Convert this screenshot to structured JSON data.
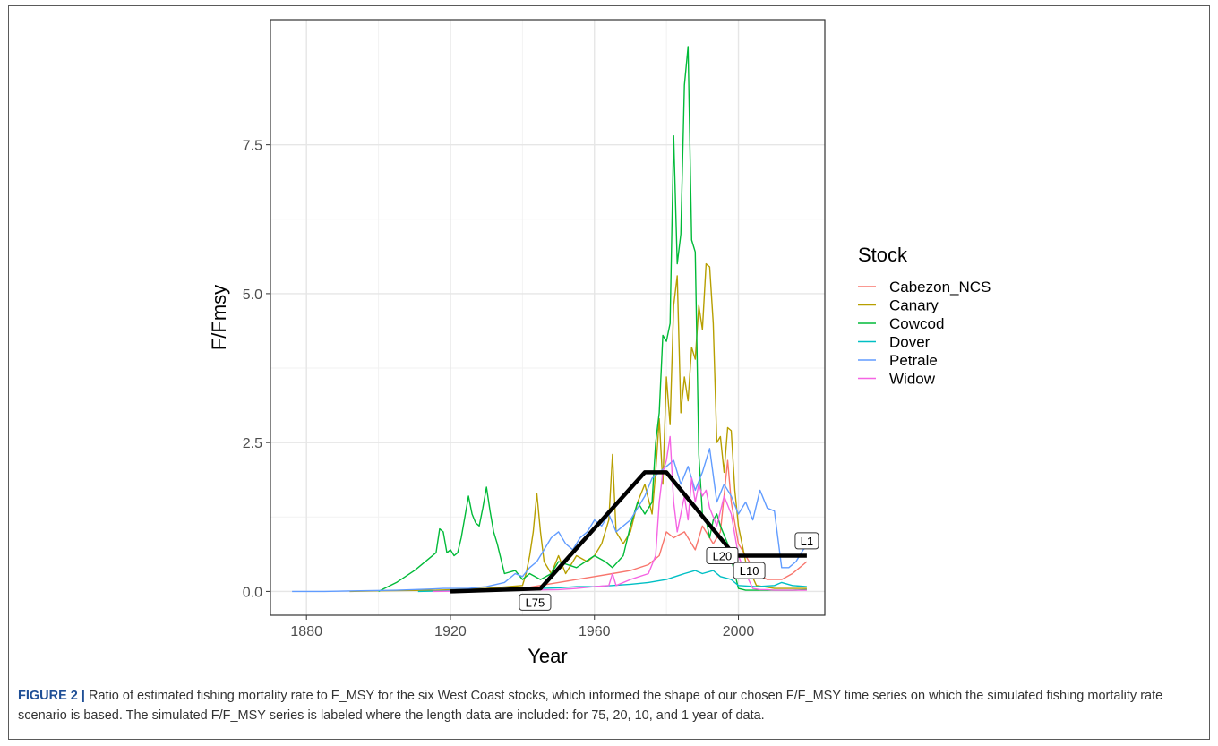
{
  "chart_data": {
    "type": "line",
    "title": "",
    "xlabel": "Year",
    "ylabel": "F/Fmsy",
    "xlim": [
      1870,
      2024
    ],
    "ylim": [
      -0.4,
      9.6
    ],
    "x_ticks": [
      1880,
      1920,
      1960,
      2000
    ],
    "x_tick_labels": [
      "1880",
      "1920",
      "1960",
      "2000"
    ],
    "y_ticks": [
      0,
      2.5,
      5,
      7.5
    ],
    "y_tick_labels": [
      "0.0",
      "2.5",
      "5.0",
      "7.5"
    ],
    "grid": true,
    "legend": {
      "title": "Stock",
      "position": "right"
    },
    "series": [
      {
        "name": "Cabezon_NCS",
        "color": "#F8766D",
        "x": [
          1916,
          1930,
          1940,
          1950,
          1955,
          1960,
          1965,
          1970,
          1975,
          1978,
          1980,
          1982,
          1985,
          1988,
          1990,
          1993,
          1995,
          1997,
          1998,
          2000,
          2002,
          2005,
          2008,
          2010,
          2012,
          2015,
          2018,
          2019
        ],
        "y": [
          0.01,
          0.02,
          0.05,
          0.15,
          0.2,
          0.25,
          0.3,
          0.35,
          0.45,
          0.6,
          1.0,
          0.9,
          1.0,
          0.7,
          1.1,
          0.8,
          1.0,
          2.2,
          1.5,
          0.8,
          0.6,
          0.3,
          0.2,
          0.2,
          0.2,
          0.3,
          0.45,
          0.5
        ]
      },
      {
        "name": "Canary",
        "color": "#B79F00",
        "x": [
          1892,
          1900,
          1916,
          1930,
          1940,
          1941,
          1942,
          1943,
          1944,
          1945,
          1946,
          1948,
          1950,
          1952,
          1955,
          1958,
          1960,
          1962,
          1964,
          1965,
          1966,
          1968,
          1970,
          1972,
          1974,
          1976,
          1977,
          1978,
          1979,
          1980,
          1981,
          1982,
          1983,
          1984,
          1985,
          1986,
          1987,
          1988,
          1989,
          1990,
          1991,
          1992,
          1993,
          1994,
          1995,
          1996,
          1997,
          1998,
          1999,
          2000,
          2002,
          2005,
          2010,
          2015,
          2019
        ],
        "y": [
          0.0,
          0.01,
          0.02,
          0.05,
          0.1,
          0.3,
          0.6,
          1.0,
          1.65,
          1.0,
          0.5,
          0.3,
          0.6,
          0.3,
          0.6,
          0.5,
          0.6,
          0.8,
          1.2,
          2.3,
          1.0,
          0.8,
          1.0,
          1.5,
          1.8,
          1.3,
          2.0,
          2.9,
          1.8,
          3.6,
          2.8,
          4.8,
          5.3,
          3.0,
          3.6,
          3.2,
          4.1,
          3.9,
          4.8,
          4.4,
          5.5,
          5.45,
          4.5,
          2.5,
          2.6,
          2.0,
          2.75,
          2.7,
          1.7,
          1.1,
          0.5,
          0.1,
          0.05,
          0.05,
          0.05
        ]
      },
      {
        "name": "Cowcod",
        "color": "#00BA38",
        "x": [
          1900,
          1905,
          1910,
          1916,
          1917,
          1918,
          1919,
          1920,
          1921,
          1922,
          1923,
          1925,
          1926,
          1927,
          1928,
          1929,
          1930,
          1931,
          1932,
          1933,
          1935,
          1938,
          1940,
          1942,
          1945,
          1948,
          1950,
          1955,
          1960,
          1963,
          1965,
          1968,
          1970,
          1972,
          1974,
          1976,
          1977,
          1978,
          1979,
          1980,
          1981,
          1982,
          1983,
          1984,
          1985,
          1986,
          1987,
          1988,
          1989,
          1990,
          1991,
          1992,
          1993,
          1994,
          1995,
          1997,
          2000,
          2002,
          2005,
          2010,
          2015,
          2019
        ],
        "y": [
          0.0,
          0.15,
          0.35,
          0.65,
          1.05,
          1.0,
          0.65,
          0.7,
          0.6,
          0.65,
          0.9,
          1.6,
          1.3,
          1.15,
          1.1,
          1.4,
          1.75,
          1.35,
          1.0,
          0.8,
          0.3,
          0.35,
          0.2,
          0.3,
          0.2,
          0.3,
          0.5,
          0.4,
          0.6,
          0.5,
          0.4,
          0.6,
          1.1,
          1.5,
          1.3,
          1.5,
          2.5,
          3.0,
          4.3,
          4.2,
          4.5,
          7.65,
          5.5,
          6.0,
          8.5,
          9.15,
          5.9,
          5.7,
          2.3,
          1.3,
          1.2,
          0.9,
          1.2,
          1.3,
          1.1,
          0.8,
          0.05,
          0.02,
          0.02,
          0.02,
          0.02,
          0.03
        ]
      },
      {
        "name": "Dover",
        "color": "#00BFC4",
        "x": [
          1911,
          1920,
          1930,
          1940,
          1950,
          1955,
          1960,
          1965,
          1970,
          1975,
          1980,
          1985,
          1988,
          1990,
          1993,
          1995,
          1998,
          2000,
          2005,
          2010,
          2012,
          2015,
          2019
        ],
        "y": [
          0.0,
          0.01,
          0.02,
          0.04,
          0.06,
          0.08,
          0.08,
          0.1,
          0.12,
          0.15,
          0.2,
          0.3,
          0.35,
          0.3,
          0.35,
          0.25,
          0.2,
          0.1,
          0.08,
          0.1,
          0.15,
          0.1,
          0.08
        ]
      },
      {
        "name": "Petrale",
        "color": "#619CFF",
        "x": [
          1876,
          1885,
          1895,
          1905,
          1915,
          1918,
          1925,
          1930,
          1935,
          1938,
          1940,
          1942,
          1944,
          1946,
          1948,
          1950,
          1952,
          1954,
          1956,
          1958,
          1960,
          1962,
          1964,
          1966,
          1968,
          1970,
          1972,
          1974,
          1976,
          1978,
          1980,
          1982,
          1984,
          1986,
          1988,
          1990,
          1992,
          1994,
          1996,
          1998,
          2000,
          2002,
          2004,
          2006,
          2008,
          2010,
          2012,
          2014,
          2016,
          2018,
          2019
        ],
        "y": [
          0.0,
          0.0,
          0.01,
          0.02,
          0.04,
          0.05,
          0.05,
          0.08,
          0.15,
          0.3,
          0.25,
          0.4,
          0.5,
          0.7,
          0.9,
          1.0,
          0.8,
          0.7,
          0.9,
          1.0,
          1.2,
          1.1,
          1.3,
          1.0,
          1.1,
          1.2,
          1.4,
          1.6,
          1.9,
          2.0,
          2.1,
          2.2,
          1.8,
          2.1,
          1.7,
          2.0,
          2.4,
          1.5,
          1.8,
          1.6,
          1.3,
          1.5,
          1.2,
          1.7,
          1.4,
          1.35,
          0.4,
          0.4,
          0.5,
          0.7,
          0.75
        ]
      },
      {
        "name": "Widow",
        "color": "#F564E3",
        "x": [
          1915,
          1930,
          1940,
          1950,
          1955,
          1960,
          1964,
          1965,
          1966,
          1970,
          1975,
          1977,
          1978,
          1979,
          1980,
          1981,
          1982,
          1983,
          1984,
          1985,
          1986,
          1987,
          1988,
          1989,
          1990,
          1991,
          1992,
          1994,
          1996,
          1998,
          2000,
          2002,
          2004,
          2006,
          2008,
          2010,
          2012,
          2015,
          2019
        ],
        "y": [
          0.0,
          0.01,
          0.02,
          0.03,
          0.05,
          0.08,
          0.1,
          0.3,
          0.1,
          0.2,
          0.3,
          0.6,
          1.5,
          2.0,
          2.2,
          2.6,
          1.5,
          1.0,
          1.3,
          1.6,
          1.2,
          1.9,
          1.5,
          1.8,
          1.6,
          1.7,
          1.4,
          1.1,
          1.6,
          1.3,
          0.6,
          0.3,
          0.05,
          0.03,
          0.03,
          0.02,
          0.02,
          0.02,
          0.02
        ]
      }
    ],
    "simulated": {
      "color": "#000000",
      "x": [
        1920,
        1945,
        1974,
        1980,
        1999,
        2019
      ],
      "y": [
        0.0,
        0.05,
        2.0,
        2.0,
        0.6,
        0.6
      ]
    },
    "annotations": [
      {
        "text": "L75",
        "x": 1943.5,
        "y": -0.18
      },
      {
        "text": "L20",
        "x": 1995.5,
        "y": 0.6
      },
      {
        "text": "L10",
        "x": 2003.0,
        "y": 0.35
      },
      {
        "text": "L1",
        "x": 2019.0,
        "y": 0.85
      }
    ]
  },
  "caption": {
    "figure_label": "FIGURE 2 |",
    "text": "Ratio of estimated fishing mortality rate to F_MSY for the six West Coast stocks, which informed the shape of our chosen F/F_MSY time series on which the simulated fishing mortality rate scenario is based. The simulated F/F_MSY series is labeled where the length data are included: for 75, 20, 10, and 1 year of data."
  }
}
